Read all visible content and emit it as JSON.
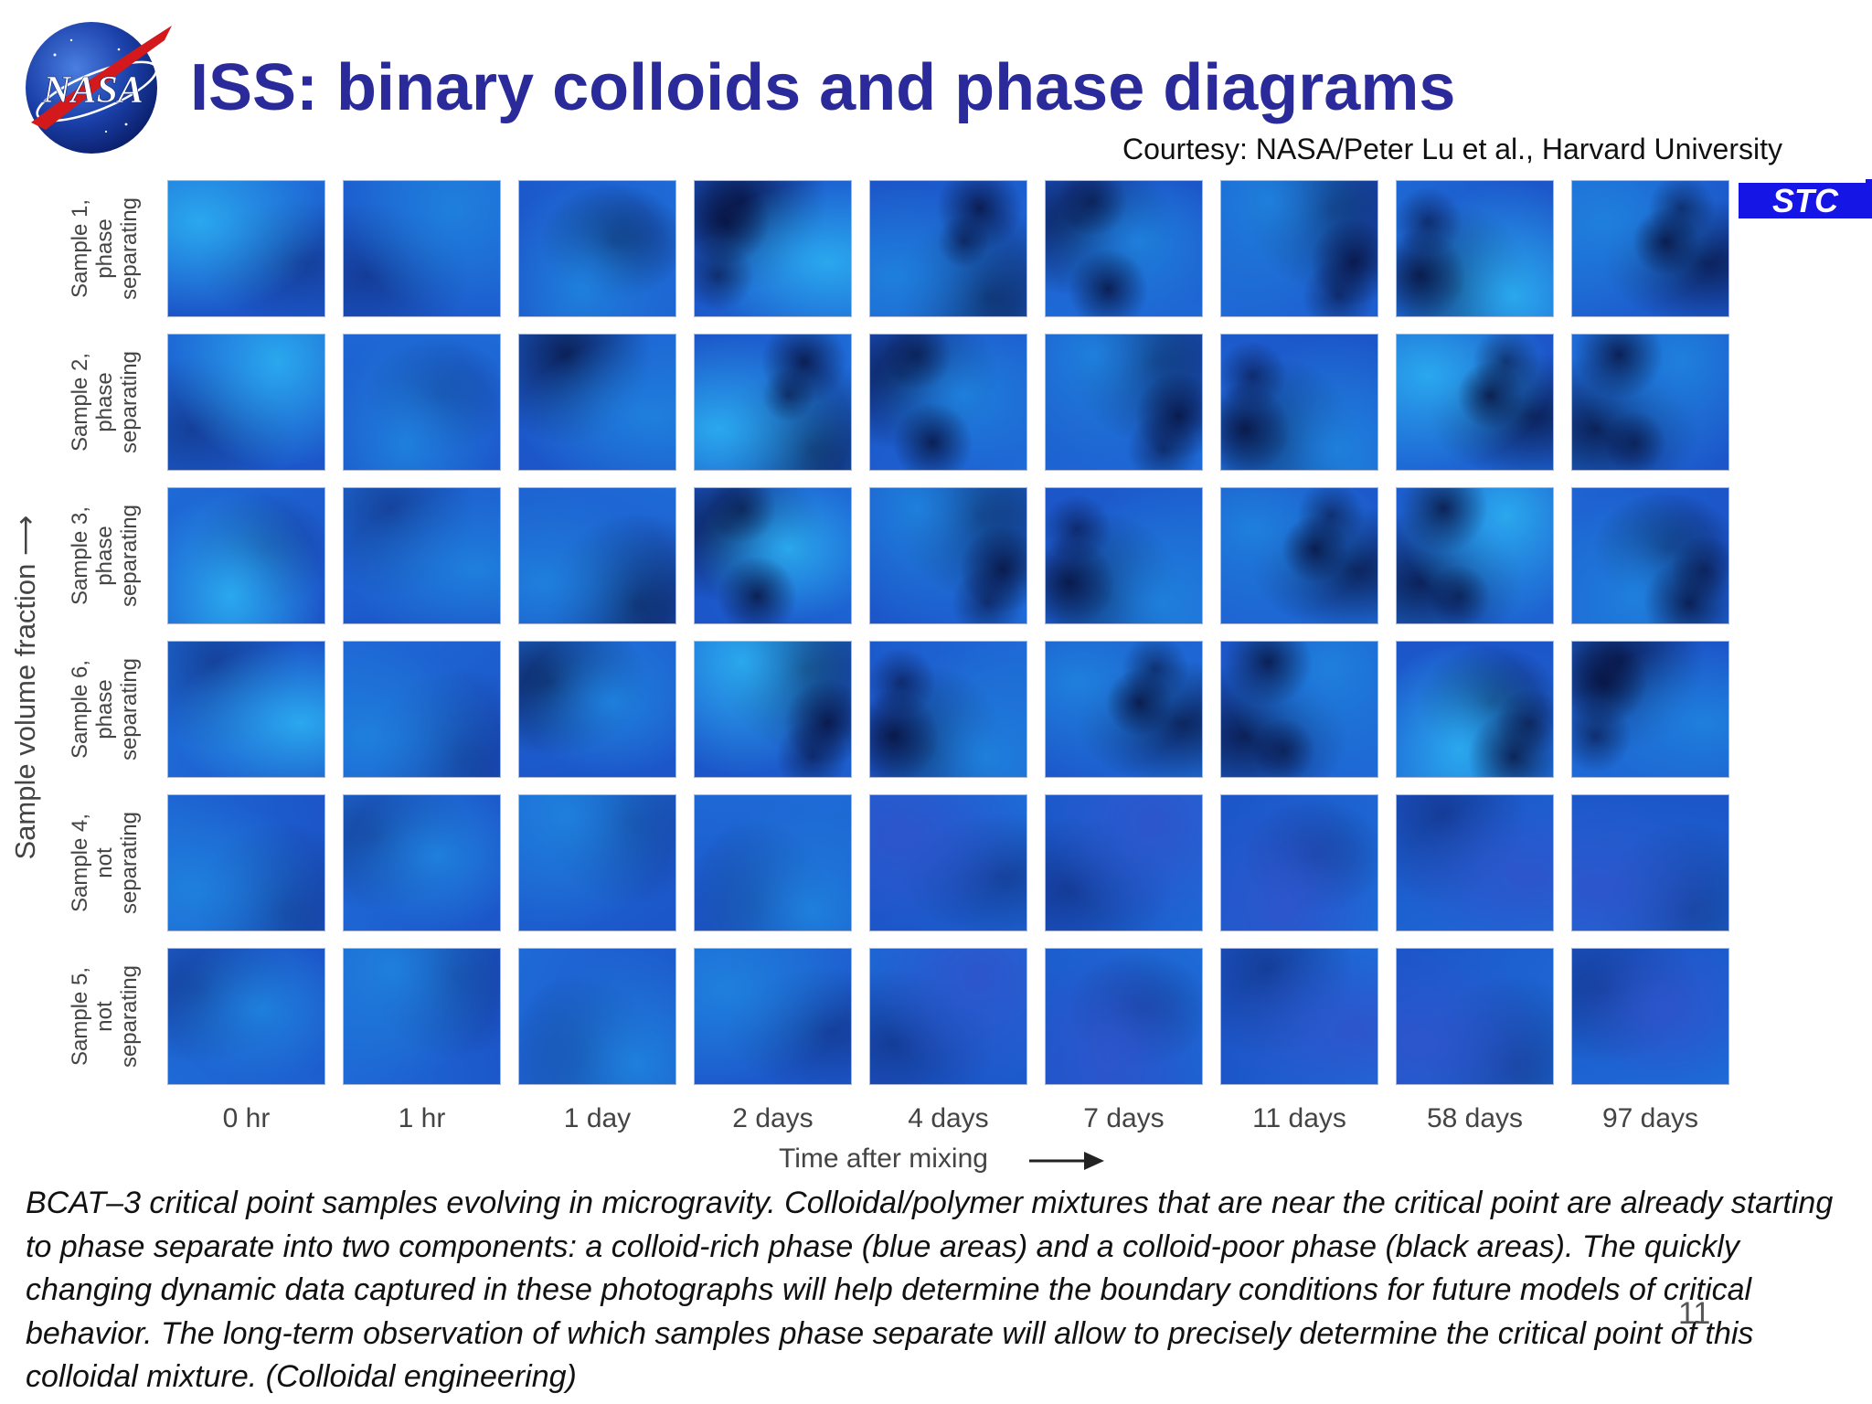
{
  "slide": {
    "title": "ISS: binary colloids and phase diagrams",
    "courtesy": "Courtesy: NASA/Peter Lu et al., Harvard University",
    "badge": "STC",
    "logo_text": "NASA",
    "page_number": "11",
    "caption": "BCAT–3 critical point samples evolving in microgravity. Colloidal/polymer mixtures that are near the critical point are already starting to phase separate into two components: a colloid-rich phase (blue areas) and a colloid-poor phase (black areas). The quickly changing dynamic data captured in these photographs will help determine the boundary conditions for future models of critical behavior. The long-term observation of which samples phase separate will allow to precisely determine the critical point of this colloidal mixture. (Colloidal engineering)"
  },
  "figure": {
    "y_axis_label": "Sample volume fraction",
    "x_axis_label": "Time after mixing",
    "rows": [
      {
        "lines": [
          "Sample 1,",
          "phase",
          "separating"
        ]
      },
      {
        "lines": [
          "Sample 2,",
          "phase",
          "separating"
        ]
      },
      {
        "lines": [
          "Sample 3,",
          "phase",
          "separating"
        ]
      },
      {
        "lines": [
          "Sample 6,",
          "phase",
          "separating"
        ]
      },
      {
        "lines": [
          "Sample 4,",
          "not",
          "separating"
        ]
      },
      {
        "lines": [
          "Sample 5,",
          "not",
          "separating"
        ]
      }
    ],
    "columns": [
      "0 hr",
      "1 hr",
      "1 day",
      "2 days",
      "4 days",
      "7 days",
      "11 days",
      "58 days",
      "97 days"
    ]
  }
}
